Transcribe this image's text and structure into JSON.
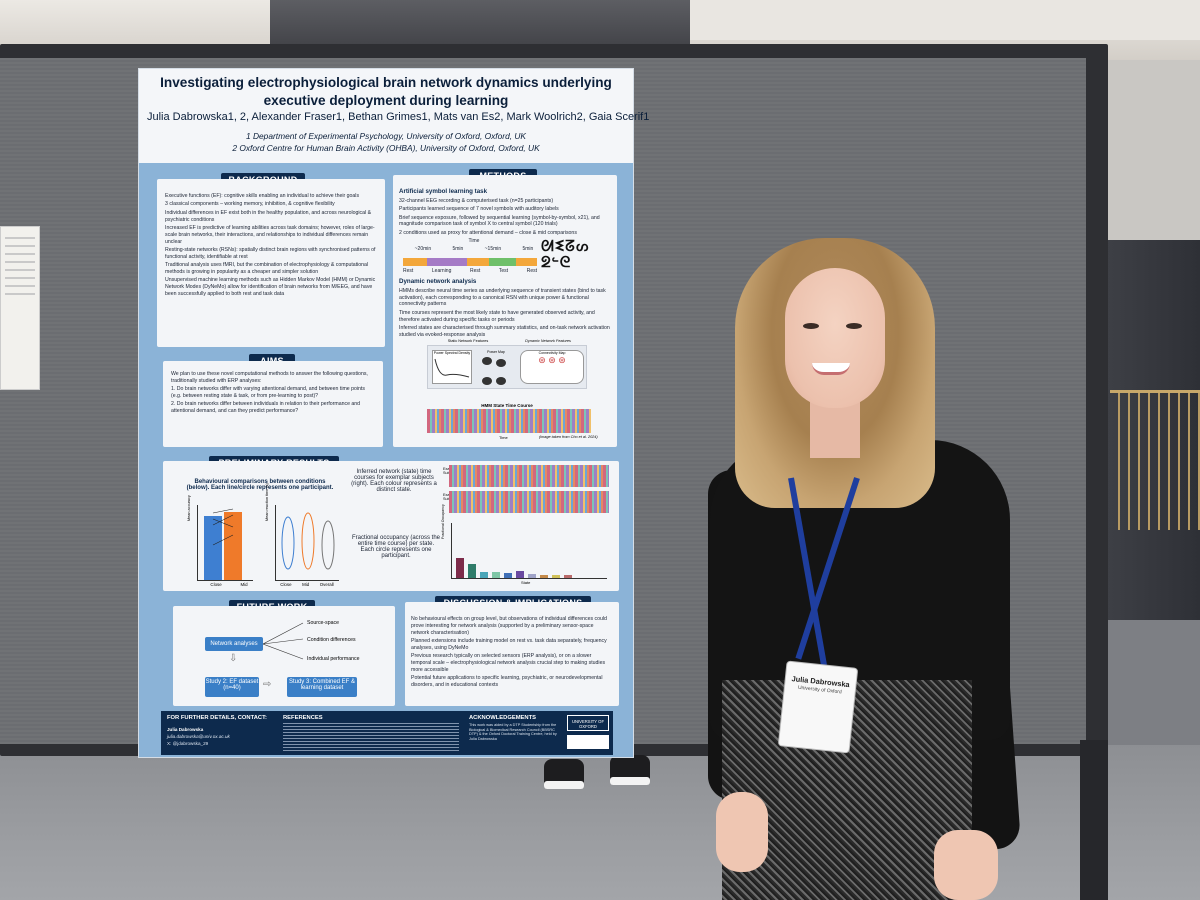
{
  "poster": {
    "title": "Investigating electrophysiological brain network dynamics underlying executive deployment during learning",
    "authors": "Julia Dabrowska1, 2, Alexander Fraser1, Bethan Grimes1, Mats van Es2, Mark Woolrich2, Gaia Scerif1",
    "affiliation_1": "1 Department of Experimental Psychology, University of Oxford, Oxford, UK",
    "affiliation_2": "2 Oxford Centre for Human Brain Activity (OHBA), University of Oxford, Oxford, UK",
    "background": {
      "heading": "BACKGROUND",
      "points": [
        "Executive functions (EF): cognitive skills enabling an individual to achieve their goals",
        "3 classical components – working memory, inhibition, & cognitive flexibility",
        "Individual differences in EF exist both in the healthy population, and across neurological & psychiatric conditions",
        "Increased EF is predictive of learning abilities across task domains; however, roles of large-scale brain networks, their interactions, and relationships to individual differences remain unclear",
        "Resting-state networks (RSNs): spatially distinct brain regions with synchronised patterns of functional activity, identifiable at rest",
        "Traditional analysis uses fMRI, but the combination of electrophysiology & computational methods is growing in popularity as a cheaper and simpler solution",
        "Unsupervised machine learning methods such as Hidden Markov Model (HMM) or Dynamic Network Modes (DyNeMo) allow for identification of brain networks from M/EEG, and have been successfully applied to both rest and task data"
      ]
    },
    "aims": {
      "heading": "AIMS",
      "intro": "We plan to use these novel computational methods to answer the following questions, traditionally studied with ERP analyses:",
      "questions": [
        "1. Do brain networks differ with varying attentional demand, and between time points (e.g. between resting state & task, or from pre-learning to post)?",
        "2. Do brain networks differ between individuals in relation to their performance and attentional demand, and can they predict performance?"
      ]
    },
    "methods": {
      "heading": "METHODS",
      "sub1": "Artificial symbol learning task",
      "points1": [
        "32-channel EEG recording & computerised task (n=25 participants)",
        "Participants learned sequence of 7 novel symbols with auditory labels",
        "Brief sequence exposure, followed by sequential learning (symbol-by-symbol, x21), and magnitude comparison task of symbol X to central symbol (120 trials)",
        "2 conditions used as proxy for attentional demand – close & mid comparisons"
      ],
      "timeline_label": "Time",
      "timeline_durations": [
        "~20min",
        "5min",
        "~15min",
        "5min"
      ],
      "timeline_phases": [
        "Rest",
        "Learning",
        "Rest",
        "Test",
        "Rest"
      ],
      "sub2": "Dynamic network analysis",
      "points2": [
        "HMMs describe neural time series as underlying sequence of transient states (bind to task activation), each corresponding to a canonical RSN with unique power & functional connectivity patterns",
        "Time courses represent the most likely state to have generated observed activity, and therefore activated during specific tasks or periods",
        "Inferred states are characterised through summary statistics, and on-task network activation studied via evoked-response analysis"
      ],
      "fig_static": "Static Network Features",
      "fig_dynamic": "Dynamic Network Features",
      "fig_psd": "Power Spectral Density",
      "fig_power": "Power Map",
      "fig_conn": "Connectivity Map",
      "fig_hmm": "HMM State Time Course",
      "fig_time": "Time",
      "fig_credit": "(image taken from Cho et al. 2024)"
    },
    "preliminary": {
      "heading": "PRELIMINARY RESULTS",
      "behav_caption": "Behavioural comparisons between conditions (below). Each line/circle represents one participant.",
      "behav_xcats": [
        "Close",
        "Mid"
      ],
      "violin_xcats": [
        "Close",
        "Mid",
        "Overall"
      ],
      "network_caption": "Inferred network (state) time courses for exemplar subjects (right). Each colour represents a distinct state.",
      "subject_a": "Example Subject A",
      "subject_b": "Example Subject B",
      "occupancy_caption": "Fractional occupancy (across the entire time course) per state. Each circle represents one participant.",
      "state_label": "State",
      "fo_ylabel": "Fractional Occupancy",
      "acc_ylabel": "Mean accuracy",
      "rt_ylabel": "Mean reaction time (s)"
    },
    "future": {
      "heading": "FUTURE WORK",
      "node_main": "Network analyses",
      "branches": [
        "Source-space",
        "Condition differences",
        "Individual performance"
      ],
      "study2": "Study 2: EF dataset (n=40)",
      "study3": "Study 3: Combined EF & learning dataset"
    },
    "discussion": {
      "heading": "DISCUSSION & IMPLICATIONS",
      "points": [
        "No behavioural effects on group level, but observations of individual differences could prove interesting for network analysis (supported by a preliminary sensor-space network characterisation)",
        "Planned extensions include training model on rest vs. task data separately, frequency analyses, using DyNeMo",
        "Previous research typically on selected sensors (ERP analysis), or on a slower temporal scale – electrophysiological network analysis crucial step to making studies more accessible",
        "Potential future applications to specific learning, psychiatric, or neurodevelopmental disorders, and in educational contexts"
      ]
    },
    "footer": {
      "contact_heading": "FOR FURTHER DETAILS, CONTACT:",
      "contact_name": "Julia Dabrowska",
      "contact_email": "julia.dabrowska@univ.ox.ac.uk",
      "contact_x": "X: @jdabrowska_29",
      "references_heading": "REFERENCES",
      "ack_heading": "ACKNOWLEDGEMENTS",
      "ack_text": "This work was aided by a DTP Studentship from the Biological & Biomedical Research Council (BBSRC DTP) & the Oxford Doctoral Training Centre, held by Julia Dabrowska",
      "university": "UNIVERSITY OF OXFORD"
    }
  },
  "badge": {
    "name": "Julia Dabrowska",
    "org": "University of Oxford"
  },
  "colors": {
    "poster_frame": "#8bb3d7",
    "section_heading": "#0d2a4d",
    "lanyard": "#1f3e9e",
    "board": "#6b6d71"
  }
}
